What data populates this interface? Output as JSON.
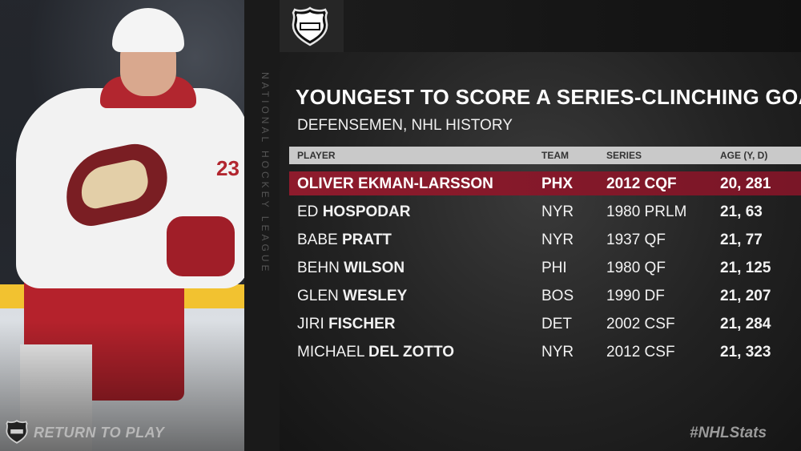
{
  "vertical_text": "National Hockey League",
  "title": "YOUNGEST TO SCORE A SERIES-CLINCHING GOAL",
  "subtitle": "DEFENSEMEN, NHL HISTORY",
  "columns": {
    "player": "PLAYER",
    "team": "TEAM",
    "series": "SERIES",
    "age": "AGE (Y, D)"
  },
  "rows": [
    {
      "first": "OLIVER",
      "last": "EKMAN-LARSSON",
      "team": "PHX",
      "series": "2012 CQF",
      "age": "20, 281",
      "highlight": true
    },
    {
      "first": "ED",
      "last": "HOSPODAR",
      "team": "NYR",
      "series": "1980 PRLM",
      "age": "21, 63"
    },
    {
      "first": "BABE",
      "last": "PRATT",
      "team": "NYR",
      "series": "1937 QF",
      "age": "21, 77"
    },
    {
      "first": "BEHN",
      "last": "WILSON",
      "team": "PHI",
      "series": "1980 QF",
      "age": "21, 125"
    },
    {
      "first": "GLEN",
      "last": "WESLEY",
      "team": "BOS",
      "series": "1990 DF",
      "age": "21, 207"
    },
    {
      "first": "JIRI",
      "last": "FISCHER",
      "team": "DET",
      "series": "2002 CSF",
      "age": "21, 284"
    },
    {
      "first": "MICHAEL",
      "last": "DEL ZOTTO",
      "team": "NYR",
      "series": "2012 CSF",
      "age": "21, 323"
    }
  ],
  "jersey_number": "23",
  "footer": {
    "return_to_play": "RETURN TO PLAY",
    "hashtag": "#NHLStats"
  },
  "colors": {
    "highlight": "#8e1b2c",
    "header_bar": "#c9c9c9"
  }
}
